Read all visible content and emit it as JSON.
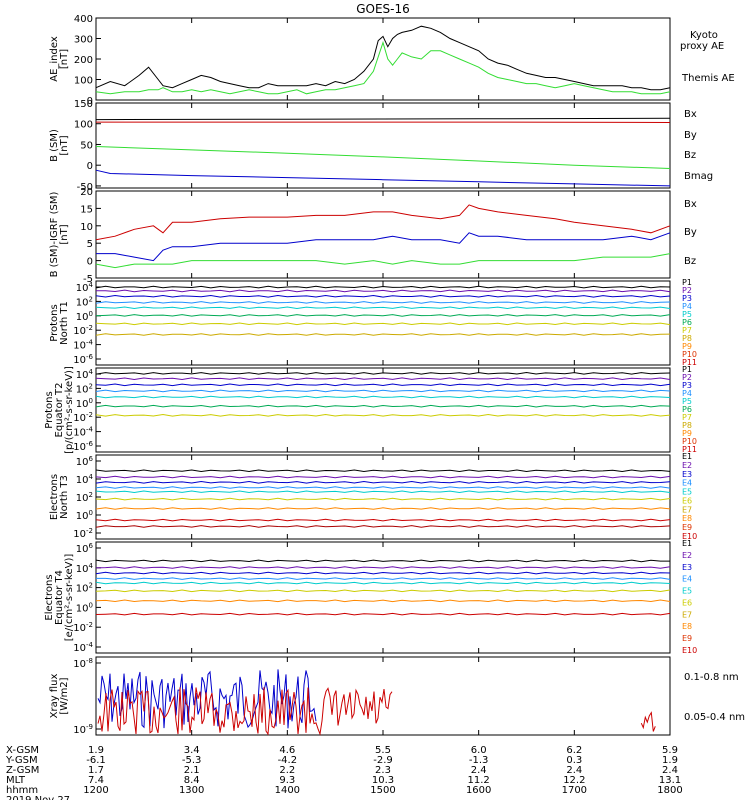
{
  "title": "GOES-16",
  "colors": {
    "black": "#000000",
    "green": "#33dd33",
    "blue": "#0000cc",
    "red": "#cc0000"
  },
  "chart_data": [
    {
      "type": "line",
      "id": "ae",
      "ylabel": [
        "AE_index",
        "[nT]"
      ],
      "ylim": [
        0,
        400
      ],
      "yticks": [
        "0",
        "100",
        "200",
        "300",
        "400"
      ],
      "xlim": [
        1200,
        1800
      ],
      "legend": [
        {
          "name": "Kyoto",
          "line2": "proxy AE",
          "color": "#33dd33"
        },
        {
          "name": "Themis AE",
          "color": "#000000"
        }
      ],
      "series": [
        {
          "name": "Themis AE",
          "color": "#000000",
          "x": [
            1200,
            1215,
            1230,
            1245,
            1255,
            1265,
            1270,
            1280,
            1290,
            1300,
            1310,
            1320,
            1330,
            1340,
            1350,
            1360,
            1370,
            1380,
            1390,
            1400,
            1410,
            1420,
            1430,
            1440,
            1450,
            1460,
            1470,
            1480,
            1490,
            1495,
            1500,
            1505,
            1510,
            1515,
            1520,
            1530,
            1540,
            1550,
            1560,
            1570,
            1580,
            1590,
            1600,
            1610,
            1620,
            1630,
            1640,
            1650,
            1660,
            1670,
            1680,
            1690,
            1700,
            1710,
            1720,
            1730,
            1740,
            1750,
            1760,
            1770,
            1780,
            1790,
            1800
          ],
          "y": [
            60,
            90,
            70,
            120,
            160,
            100,
            70,
            60,
            80,
            100,
            120,
            110,
            90,
            80,
            70,
            60,
            60,
            80,
            70,
            70,
            70,
            70,
            80,
            70,
            90,
            80,
            100,
            140,
            200,
            290,
            310,
            260,
            300,
            320,
            330,
            340,
            360,
            350,
            330,
            300,
            280,
            260,
            240,
            200,
            180,
            170,
            150,
            130,
            120,
            110,
            110,
            100,
            90,
            80,
            70,
            70,
            70,
            70,
            60,
            60,
            50,
            50,
            60
          ]
        },
        {
          "name": "Kyoto proxy AE",
          "color": "#33dd33",
          "x": [
            1200,
            1215,
            1230,
            1245,
            1255,
            1265,
            1270,
            1280,
            1290,
            1300,
            1310,
            1320,
            1330,
            1340,
            1350,
            1360,
            1370,
            1380,
            1390,
            1400,
            1410,
            1420,
            1430,
            1440,
            1450,
            1460,
            1470,
            1480,
            1490,
            1495,
            1500,
            1505,
            1510,
            1515,
            1520,
            1530,
            1540,
            1550,
            1560,
            1570,
            1580,
            1590,
            1600,
            1610,
            1620,
            1630,
            1640,
            1650,
            1660,
            1670,
            1680,
            1690,
            1700,
            1710,
            1720,
            1730,
            1740,
            1750,
            1760,
            1770,
            1780,
            1790,
            1800
          ],
          "y": [
            40,
            30,
            40,
            40,
            50,
            50,
            60,
            40,
            40,
            50,
            40,
            50,
            40,
            30,
            40,
            50,
            40,
            30,
            30,
            40,
            50,
            30,
            40,
            50,
            50,
            60,
            70,
            80,
            140,
            210,
            280,
            200,
            170,
            200,
            230,
            210,
            200,
            240,
            240,
            220,
            200,
            180,
            160,
            130,
            110,
            100,
            90,
            80,
            80,
            70,
            60,
            70,
            80,
            70,
            60,
            50,
            40,
            40,
            40,
            30,
            30,
            30,
            40
          ]
        }
      ]
    },
    {
      "type": "line",
      "id": "bsm",
      "ylabel": [
        "B (SM)",
        "[nT]"
      ],
      "ylim": [
        -55,
        150
      ],
      "yticks": [
        "-50",
        "0",
        "50",
        "100",
        "150"
      ],
      "xlim": [
        1200,
        1800
      ],
      "legend": [
        {
          "name": "Bx",
          "color": "#0000cc"
        },
        {
          "name": "By",
          "color": "#33dd33"
        },
        {
          "name": "Bz",
          "color": "#cc0000"
        },
        {
          "name": "Bmag",
          "color": "#000000"
        }
      ],
      "series": [
        {
          "name": "Bmag",
          "color": "#000000",
          "x": [
            1200,
            1400,
            1600,
            1800
          ],
          "y": [
            110,
            111,
            112,
            113
          ]
        },
        {
          "name": "Bz",
          "color": "#cc0000",
          "x": [
            1200,
            1400,
            1600,
            1800
          ],
          "y": [
            104,
            104,
            104,
            103
          ]
        },
        {
          "name": "By",
          "color": "#33dd33",
          "x": [
            1200,
            1300,
            1400,
            1500,
            1600,
            1700,
            1800
          ],
          "y": [
            45,
            37,
            29,
            20,
            10,
            0,
            -8
          ]
        },
        {
          "name": "Bx",
          "color": "#0000cc",
          "x": [
            1200,
            1215,
            1300,
            1400,
            1500,
            1600,
            1700,
            1800
          ],
          "y": [
            -12,
            -20,
            -25,
            -30,
            -35,
            -40,
            -45,
            -50
          ]
        }
      ]
    },
    {
      "type": "line",
      "id": "bigrf",
      "ylabel": [
        "B (SM)-IGRF (SM)",
        "[nT]"
      ],
      "ylim": [
        -5,
        20
      ],
      "yticks": [
        "-5",
        "0",
        "5",
        "10",
        "15",
        "20"
      ],
      "xlim": [
        1200,
        1800
      ],
      "legend": [
        {
          "name": "Bx",
          "color": "#0000cc"
        },
        {
          "name": "By",
          "color": "#33dd33"
        },
        {
          "name": "Bz",
          "color": "#cc0000"
        }
      ],
      "series": [
        {
          "name": "Bz",
          "color": "#cc0000",
          "x": [
            1200,
            1220,
            1240,
            1260,
            1270,
            1280,
            1300,
            1330,
            1360,
            1400,
            1430,
            1460,
            1490,
            1510,
            1530,
            1560,
            1580,
            1590,
            1600,
            1620,
            1650,
            1680,
            1700,
            1730,
            1760,
            1780,
            1800
          ],
          "y": [
            6,
            7,
            9,
            10,
            8,
            11,
            11,
            12,
            12.5,
            12.5,
            13,
            13,
            14,
            14,
            13,
            12,
            13,
            16,
            15,
            14,
            13,
            12,
            11,
            10,
            9,
            8,
            10
          ]
        },
        {
          "name": "Bx",
          "color": "#0000cc",
          "x": [
            1200,
            1220,
            1240,
            1260,
            1270,
            1280,
            1300,
            1330,
            1360,
            1400,
            1430,
            1460,
            1490,
            1510,
            1530,
            1560,
            1580,
            1590,
            1600,
            1620,
            1650,
            1680,
            1700,
            1730,
            1760,
            1780,
            1800
          ],
          "y": [
            2,
            2,
            1,
            0,
            3,
            4,
            4,
            5,
            5,
            5,
            6,
            6,
            6,
            7,
            6,
            6,
            5,
            8,
            7,
            7,
            6,
            6,
            6,
            6,
            7,
            6,
            8
          ]
        },
        {
          "name": "By",
          "color": "#33dd33",
          "x": [
            1200,
            1220,
            1240,
            1260,
            1280,
            1300,
            1330,
            1360,
            1400,
            1430,
            1460,
            1490,
            1510,
            1530,
            1560,
            1580,
            1600,
            1620,
            1650,
            1680,
            1700,
            1730,
            1760,
            1780,
            1800
          ],
          "y": [
            -1,
            -2,
            -1,
            -1,
            -1,
            0,
            0,
            0,
            0,
            0,
            -1,
            0,
            -1,
            0,
            -1,
            -1,
            0,
            0,
            0,
            0,
            0,
            1,
            1,
            1,
            2
          ]
        }
      ]
    },
    {
      "type": "line",
      "id": "pnt1",
      "ylabel": [
        "Protons",
        "North T1"
      ],
      "ylim": [
        -7,
        4
      ],
      "yscale": "log",
      "yticks": [
        "10^4",
        "10^2",
        "10^0",
        "10^-2",
        "10^-4",
        "10^-6"
      ],
      "xlim": [
        1200,
        1800
      ],
      "legend": [
        "P1",
        "P2",
        "P3",
        "P4",
        "P5",
        "P6",
        "P7",
        "P8",
        "P9",
        "P10",
        "P11"
      ],
      "series": [
        {
          "name": "P1",
          "color": "#000000",
          "level": 3.2
        },
        {
          "name": "P2",
          "color": "#6a0dad",
          "level": 2.7
        },
        {
          "name": "P3",
          "color": "#0000cc",
          "level": 2.0
        },
        {
          "name": "P4",
          "color": "#1e90ff",
          "level": 1.2
        },
        {
          "name": "P5",
          "color": "#00cccc",
          "level": 0.5
        },
        {
          "name": "P6",
          "color": "#00aa55",
          "level": -0.5
        },
        {
          "name": "P7",
          "color": "#cccc00",
          "level": -1.6
        },
        {
          "name": "P8",
          "color": "#ccaa00",
          "level": -3.0
        }
      ]
    },
    {
      "type": "line",
      "id": "pet2",
      "ylabel": [
        "Protons",
        "Equator T2",
        "[p/(cm²-s-sr-keV)]"
      ],
      "ylim": [
        -7,
        4
      ],
      "yscale": "log",
      "yticks": [
        "10^4",
        "10^2",
        "10^0",
        "10^-2",
        "10^-4",
        "10^-6"
      ],
      "xlim": [
        1200,
        1800
      ],
      "legend": [
        "P1",
        "P2",
        "P3",
        "P4",
        "P5",
        "P6",
        "P7",
        "P8",
        "P9",
        "P10",
        "P11"
      ],
      "series": [
        {
          "name": "P1",
          "color": "#000000",
          "level": 3.3
        },
        {
          "name": "P2",
          "color": "#6a0dad",
          "level": 2.6
        },
        {
          "name": "P3",
          "color": "#0000cc",
          "level": 1.8
        },
        {
          "name": "P4",
          "color": "#1e90ff",
          "level": 1.0
        },
        {
          "name": "P5",
          "color": "#00cccc",
          "level": 0.2
        },
        {
          "name": "P6",
          "color": "#00aa55",
          "level": -1.0
        },
        {
          "name": "P7",
          "color": "#cccc00",
          "level": -2.2
        }
      ]
    },
    {
      "type": "line",
      "id": "ent3",
      "ylabel": [
        "Electrons",
        "North T3"
      ],
      "ylim": [
        -2,
        6
      ],
      "yscale": "log",
      "yticks": [
        "10^6",
        "10^4",
        "10^2",
        "10^0",
        "10^-2"
      ],
      "xlim": [
        1200,
        1800
      ],
      "legend": [
        "E1",
        "E2",
        "E3",
        "E4",
        "E5",
        "E6",
        "E7",
        "E8",
        "E9",
        "E10"
      ],
      "series": [
        {
          "name": "E1",
          "color": "#000000",
          "level": 4.5
        },
        {
          "name": "E2",
          "color": "#6a0dad",
          "level": 3.9
        },
        {
          "name": "E3",
          "color": "#0000cc",
          "level": 3.4
        },
        {
          "name": "E4",
          "color": "#1e90ff",
          "level": 2.9
        },
        {
          "name": "E5",
          "color": "#00cccc",
          "level": 2.5
        },
        {
          "name": "E6",
          "color": "#cccc00",
          "level": 1.8
        },
        {
          "name": "E7",
          "color": "#ff8800",
          "level": 0.9
        },
        {
          "name": "E9",
          "color": "#cc0000",
          "level": -0.2
        },
        {
          "name": "E10",
          "color": "#aa0000",
          "level": -0.8
        }
      ]
    },
    {
      "type": "line",
      "id": "eet4",
      "ylabel": [
        "Electrons",
        "Equator T4",
        "[e/(cm²-s-sr-keV)]"
      ],
      "ylim": [
        -4,
        6
      ],
      "yscale": "log",
      "yticks": [
        "10^6",
        "10^4",
        "10^2",
        "10^0",
        "10^-2",
        "10^-4"
      ],
      "xlim": [
        1200,
        1800
      ],
      "legend": [
        "E1",
        "E2",
        "E3",
        "E4",
        "E5",
        "E6",
        "E7",
        "E8",
        "E9",
        "E10"
      ],
      "series": [
        {
          "name": "E1",
          "color": "#000000",
          "level": 4.3
        },
        {
          "name": "E2",
          "color": "#6a0dad",
          "level": 3.7
        },
        {
          "name": "E3",
          "color": "#0000cc",
          "level": 3.2
        },
        {
          "name": "E4",
          "color": "#1e90ff",
          "level": 2.7
        },
        {
          "name": "E5",
          "color": "#00cccc",
          "level": 2.3
        },
        {
          "name": "E6",
          "color": "#cccc00",
          "level": 1.6
        },
        {
          "name": "E7",
          "color": "#ff8800",
          "level": 0.7
        },
        {
          "name": "E9",
          "color": "#cc0000",
          "level": -0.5
        }
      ]
    },
    {
      "type": "line",
      "id": "xray",
      "ylabel": [
        "Xray flux",
        "[W/m2]"
      ],
      "yscale": "log",
      "yticks": [
        "10^-8",
        "10^-9"
      ],
      "xlim": [
        1200,
        1800
      ],
      "legend": [
        {
          "name": "0.1-0.8 nm",
          "color": "#cc0000"
        },
        {
          "name": "0.05-0.4 nm",
          "color": "#0000cc"
        }
      ]
    }
  ],
  "xaxis": {
    "rows": [
      {
        "label": "X-GSM",
        "values": [
          "1.9",
          "3.4",
          "4.6",
          "5.5",
          "6.0",
          "6.2",
          "5.9"
        ]
      },
      {
        "label": "Y-GSM",
        "values": [
          "-6.1",
          "-5.3",
          "-4.2",
          "-2.9",
          "-1.3",
          "0.3",
          "1.9"
        ]
      },
      {
        "label": "Z-GSM",
        "values": [
          "1.7",
          "2.1",
          "2.2",
          "2.3",
          "2.4",
          "2.4",
          "2.4"
        ]
      },
      {
        "label": "MLT",
        "values": [
          "7.4",
          "8.4",
          "9.3",
          "10.3",
          "11.2",
          "12.2",
          "13.1"
        ]
      },
      {
        "label": "hhmm",
        "values": [
          "1200",
          "1300",
          "1400",
          "1500",
          "1600",
          "1700",
          "1800"
        ]
      }
    ],
    "date": "2019 Nov 27"
  }
}
